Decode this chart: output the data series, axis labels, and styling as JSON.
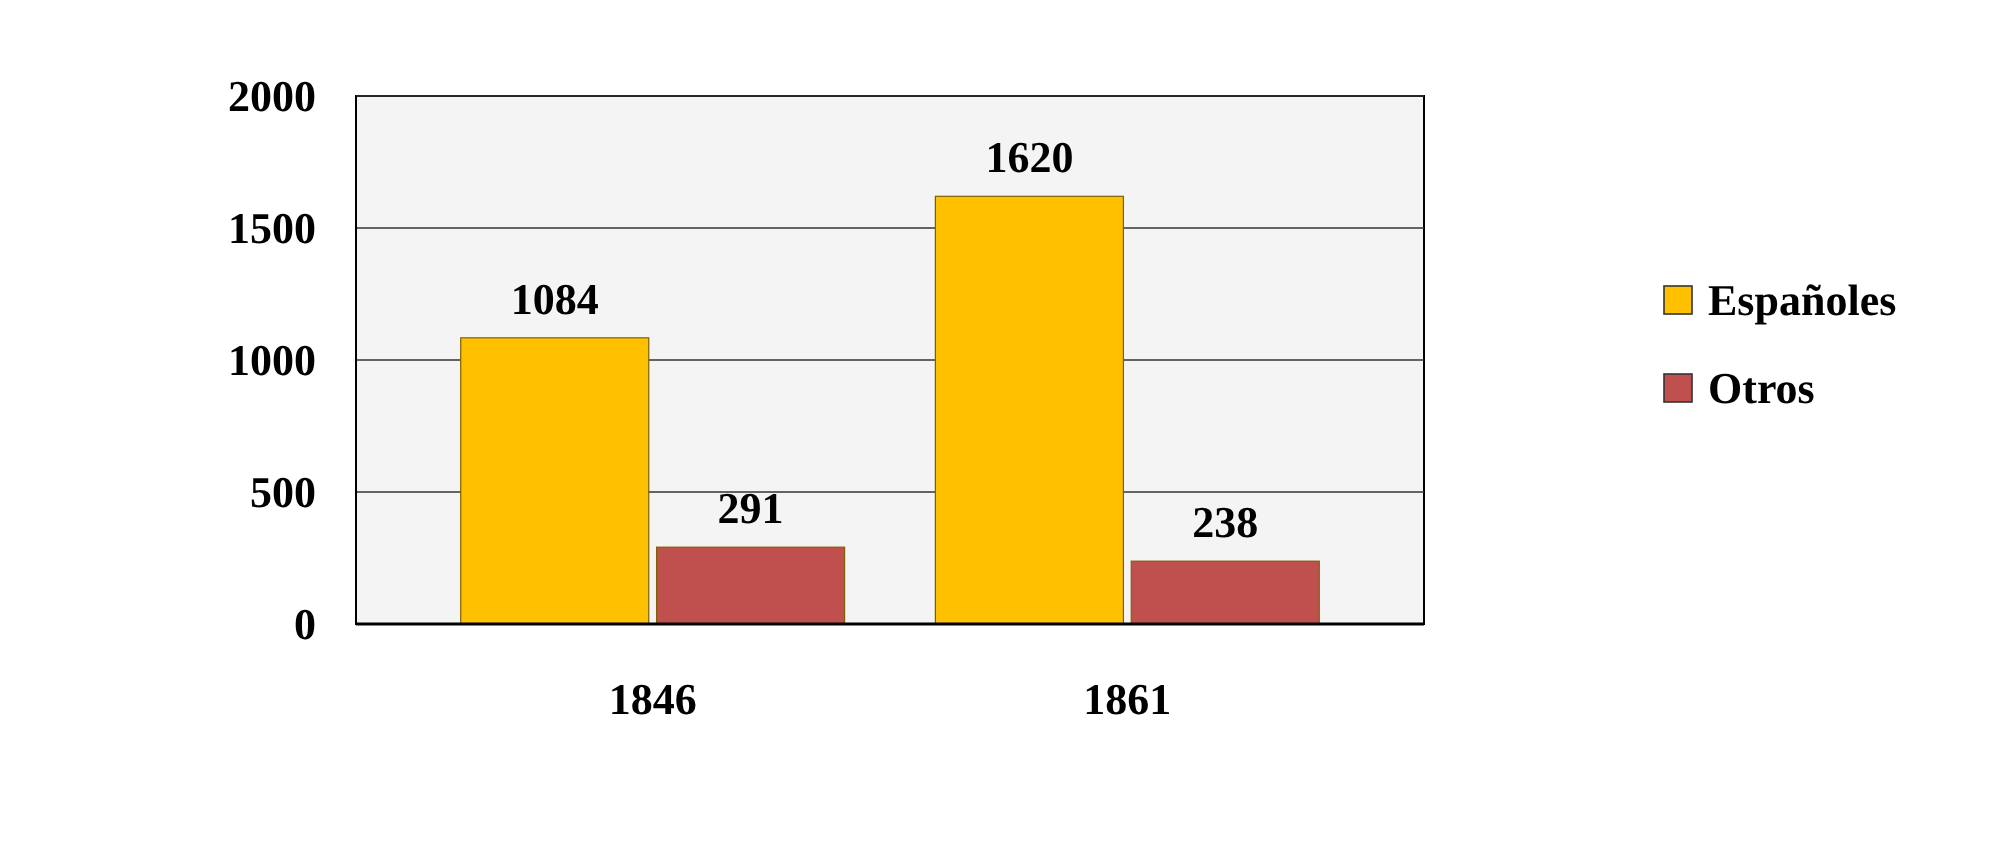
{
  "chart_data": {
    "type": "bar",
    "categories": [
      "1846",
      "1861"
    ],
    "series": [
      {
        "name": "Españoles",
        "color": "#ffc000",
        "values": [
          1084,
          1620
        ]
      },
      {
        "name": "Otros",
        "color": "#c0504d",
        "values": [
          291,
          238
        ]
      }
    ],
    "ylim": [
      0,
      2000
    ],
    "yticks": [
      0,
      500,
      1000,
      1500,
      2000
    ],
    "grid": "y",
    "legend": "right",
    "data_labels": true
  }
}
